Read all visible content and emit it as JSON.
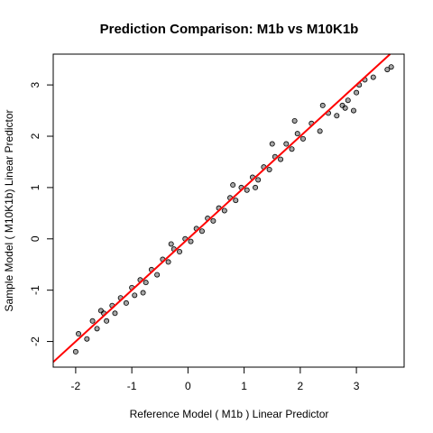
{
  "chart_data": {
    "type": "scatter",
    "title": "Prediction Comparison: M1b vs M10K1b",
    "xlabel": "Reference Model ( M1b ) Linear Predictor",
    "ylabel": "Sample Model ( M10K1b) Linear Predictor",
    "xlim": [
      -2.4,
      3.85
    ],
    "ylim": [
      -2.5,
      3.6
    ],
    "xticks": [
      -2,
      -1,
      0,
      1,
      2,
      3
    ],
    "yticks": [
      -2,
      -1,
      0,
      1,
      2,
      3
    ],
    "grid": false,
    "point_color": "#000000",
    "point_fill_alpha": 0.35,
    "line_color": "#ff0000",
    "reference_line": {
      "intercept": 0.0,
      "slope": 1.0
    },
    "points": [
      [
        -2.0,
        -2.2
      ],
      [
        -1.95,
        -1.85
      ],
      [
        -1.8,
        -1.95
      ],
      [
        -1.7,
        -1.6
      ],
      [
        -1.62,
        -1.75
      ],
      [
        -1.5,
        -1.45
      ],
      [
        -1.45,
        -1.6
      ],
      [
        -1.35,
        -1.3
      ],
      [
        -1.3,
        -1.45
      ],
      [
        -1.2,
        -1.15
      ],
      [
        -1.1,
        -1.25
      ],
      [
        -1.0,
        -0.95
      ],
      [
        -0.95,
        -1.1
      ],
      [
        -0.85,
        -0.8
      ],
      [
        -0.75,
        -0.85
      ],
      [
        -0.65,
        -0.6
      ],
      [
        -0.55,
        -0.7
      ],
      [
        -0.45,
        -0.4
      ],
      [
        -0.35,
        -0.45
      ],
      [
        -0.25,
        -0.2
      ],
      [
        -0.15,
        -0.25
      ],
      [
        -0.05,
        0.0
      ],
      [
        0.05,
        -0.05
      ],
      [
        0.15,
        0.2
      ],
      [
        0.25,
        0.15
      ],
      [
        0.35,
        0.4
      ],
      [
        0.45,
        0.35
      ],
      [
        0.55,
        0.6
      ],
      [
        0.65,
        0.55
      ],
      [
        0.75,
        0.8
      ],
      [
        0.85,
        0.75
      ],
      [
        0.95,
        1.0
      ],
      [
        1.05,
        0.95
      ],
      [
        1.15,
        1.2
      ],
      [
        1.25,
        1.15
      ],
      [
        1.35,
        1.4
      ],
      [
        1.45,
        1.35
      ],
      [
        1.55,
        1.6
      ],
      [
        1.65,
        1.55
      ],
      [
        1.75,
        1.85
      ],
      [
        1.85,
        1.75
      ],
      [
        1.95,
        2.05
      ],
      [
        2.05,
        1.95
      ],
      [
        2.2,
        2.25
      ],
      [
        2.35,
        2.1
      ],
      [
        2.5,
        2.45
      ],
      [
        2.65,
        2.4
      ],
      [
        2.75,
        2.6
      ],
      [
        2.85,
        2.7
      ],
      [
        2.95,
        2.5
      ],
      [
        3.05,
        3.0
      ],
      [
        3.15,
        3.1
      ],
      [
        3.3,
        3.15
      ],
      [
        3.55,
        3.3
      ],
      [
        3.62,
        3.35
      ],
      [
        1.5,
        1.85
      ],
      [
        1.9,
        2.3
      ],
      [
        1.2,
        1.0
      ],
      [
        0.8,
        1.05
      ],
      [
        -0.3,
        -0.1
      ],
      [
        -0.8,
        -1.05
      ],
      [
        -1.55,
        -1.4
      ],
      [
        2.4,
        2.6
      ],
      [
        2.8,
        2.55
      ],
      [
        3.0,
        2.85
      ]
    ]
  }
}
